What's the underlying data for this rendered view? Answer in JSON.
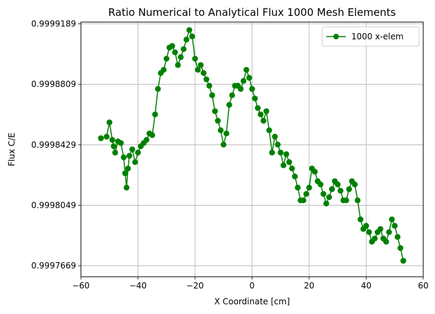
{
  "chart_data": {
    "type": "line",
    "title": "Ratio Numerical to Analytical Flux 1000 Mesh Elements",
    "xlabel": "X Coordinate [cm]",
    "ylabel": "Flux C/E",
    "xlim": [
      -60,
      60
    ],
    "ylim": [
      0.99976,
      0.99992
    ],
    "x_ticks": [
      -60,
      -40,
      -20,
      0,
      20,
      40,
      60
    ],
    "x_tick_labels": [
      "−60",
      "−40",
      "−20",
      "0",
      "20",
      "40",
      "60"
    ],
    "y_ticks": [
      0.9997669,
      0.9998049,
      0.9998429,
      0.9998809,
      0.9999189
    ],
    "y_tick_labels": [
      "0.9997669",
      "0.9998049",
      "0.9998429",
      "0.9998809",
      "0.9999189"
    ],
    "grid": true,
    "legend_position": "top-right",
    "series": [
      {
        "name": "1000 x-elem",
        "color": "#008000",
        "marker": "circle",
        "x": [
          -53,
          -51,
          -50,
          -49,
          -48.5,
          -48,
          -47,
          -46,
          -45,
          -44.5,
          -44,
          -43.5,
          -43,
          -42,
          -41,
          -40,
          -39,
          -38,
          -37,
          -36,
          -35,
          -34,
          -33,
          -32,
          -31,
          -30,
          -29,
          -28,
          -27,
          -26,
          -25,
          -24,
          -23,
          -22,
          -21,
          -20,
          -19,
          -18,
          -17,
          -16,
          -15,
          -14,
          -13,
          -12,
          -11,
          -10,
          -9,
          -8,
          -7,
          -6,
          -5,
          -4,
          -3,
          -2,
          -1,
          0,
          1,
          2,
          3,
          4,
          5,
          6,
          7,
          8,
          9,
          10,
          11,
          12,
          13,
          14,
          15,
          16,
          17,
          18,
          19,
          20,
          21,
          22,
          23,
          24,
          25,
          26,
          27,
          28,
          29,
          30,
          31,
          32,
          33,
          34,
          35,
          36,
          37,
          38,
          39,
          40,
          41,
          42,
          43,
          44,
          45,
          46,
          47,
          48,
          49,
          50,
          51,
          52,
          53
        ],
        "values": [
          0.999847,
          0.999848,
          0.999857,
          0.999846,
          0.999842,
          0.999838,
          0.999845,
          0.999844,
          0.999835,
          0.999825,
          0.999816,
          0.999828,
          0.999836,
          0.99984,
          0.999832,
          0.999838,
          0.999842,
          0.999844,
          0.999846,
          0.99985,
          0.999849,
          0.999862,
          0.999878,
          0.999888,
          0.99989,
          0.999897,
          0.999904,
          0.999905,
          0.999901,
          0.999893,
          0.999898,
          0.999903,
          0.999909,
          0.999915,
          0.999911,
          0.999897,
          0.99989,
          0.999893,
          0.999888,
          0.999884,
          0.99988,
          0.999874,
          0.999864,
          0.999858,
          0.999852,
          0.999843,
          0.99985,
          0.999868,
          0.999874,
          0.99988,
          0.99988,
          0.999878,
          0.999883,
          0.99989,
          0.999885,
          0.999878,
          0.999872,
          0.999866,
          0.999862,
          0.999858,
          0.999864,
          0.999852,
          0.999838,
          0.999848,
          0.999843,
          0.999838,
          0.99983,
          0.999837,
          0.999832,
          0.999828,
          0.999823,
          0.999816,
          0.999808,
          0.999808,
          0.999812,
          0.999816,
          0.999828,
          0.999826,
          0.99982,
          0.999818,
          0.999812,
          0.999806,
          0.99981,
          0.999815,
          0.99982,
          0.999818,
          0.999814,
          0.999808,
          0.999808,
          0.999815,
          0.99982,
          0.999818,
          0.999808,
          0.999796,
          0.99979,
          0.999792,
          0.999788,
          0.999782,
          0.999784,
          0.999788,
          0.99979,
          0.999784,
          0.999782,
          0.999788,
          0.999796,
          0.999792,
          0.999785,
          0.999778,
          0.99977
        ]
      }
    ]
  }
}
